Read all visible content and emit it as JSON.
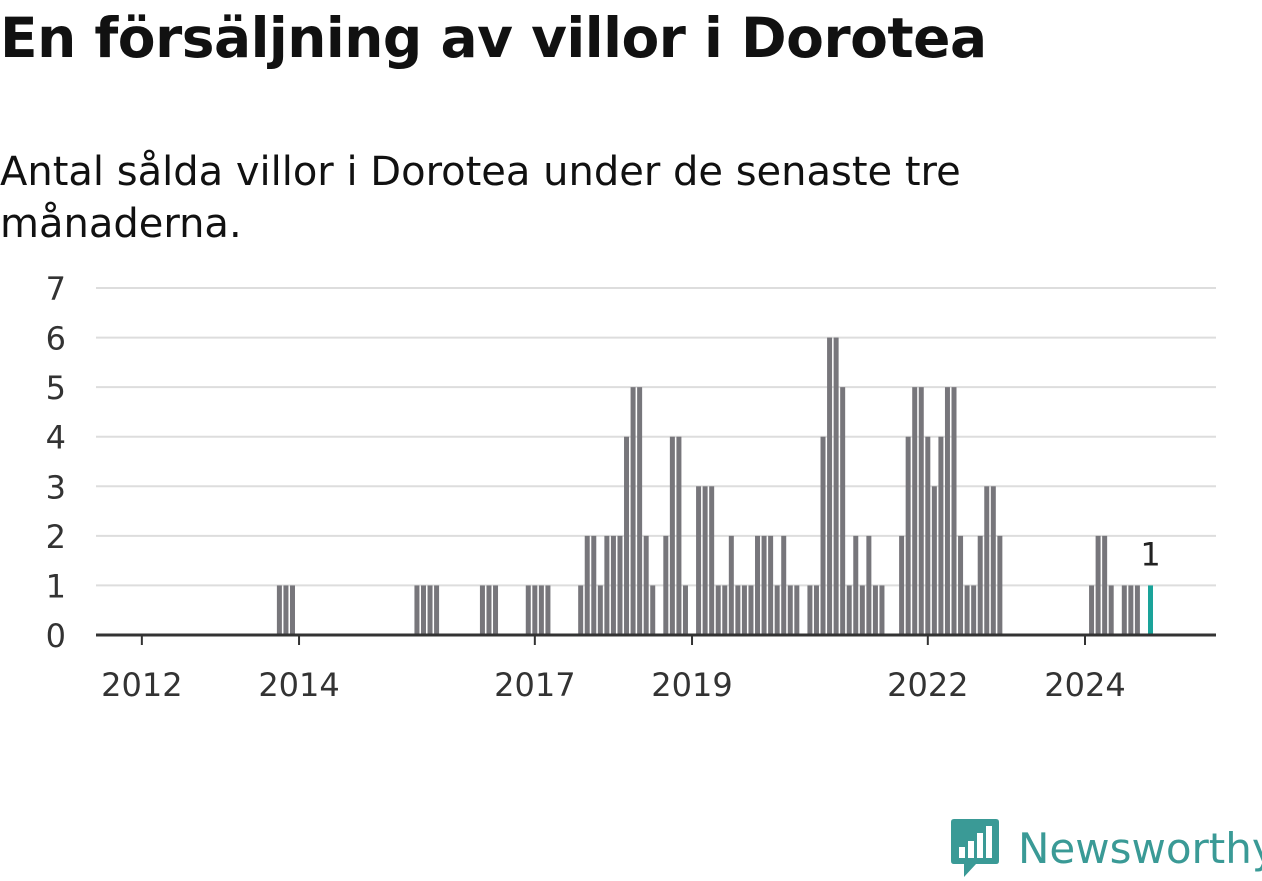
{
  "title": "En försäljning av villor i Dorotea",
  "subtitle": "Antal sålda villor i Dorotea under de senaste tre månaderna.",
  "brand": {
    "name": "Newsworthy",
    "color": "#3a9a96",
    "icon": "bar-chart-badge-icon"
  },
  "colors": {
    "bar": "#77767b",
    "highlight": "#1aa39a",
    "grid": "#dddddd",
    "axis": "#333333"
  },
  "chart_data": {
    "type": "bar",
    "title": "En försäljning av villor i Dorotea",
    "subtitle": "Antal sålda villor i Dorotea under de senaste tre månaderna.",
    "xlabel": "",
    "ylabel": "",
    "ylim": [
      0,
      7
    ],
    "yticks": [
      0,
      1,
      2,
      3,
      4,
      5,
      6,
      7
    ],
    "grid": true,
    "x_domain": [
      "2011-06",
      "2025-09"
    ],
    "x_ticks": [
      {
        "date": "2012-01",
        "label": "2012"
      },
      {
        "date": "2014-01",
        "label": "2014"
      },
      {
        "date": "2017-01",
        "label": "2017"
      },
      {
        "date": "2019-01",
        "label": "2019"
      },
      {
        "date": "2022-01",
        "label": "2022"
      },
      {
        "date": "2024-01",
        "label": "2024"
      }
    ],
    "series": [
      {
        "values": [
          {
            "x": "2013-10",
            "y": 1
          },
          {
            "x": "2013-11",
            "y": 1
          },
          {
            "x": "2013-12",
            "y": 1
          },
          {
            "x": "2015-07",
            "y": 1
          },
          {
            "x": "2015-08",
            "y": 1
          },
          {
            "x": "2015-09",
            "y": 1
          },
          {
            "x": "2015-10",
            "y": 1
          },
          {
            "x": "2016-05",
            "y": 1
          },
          {
            "x": "2016-06",
            "y": 1
          },
          {
            "x": "2016-07",
            "y": 1
          },
          {
            "x": "2016-12",
            "y": 1
          },
          {
            "x": "2017-01",
            "y": 1
          },
          {
            "x": "2017-02",
            "y": 1
          },
          {
            "x": "2017-03",
            "y": 1
          },
          {
            "x": "2017-08",
            "y": 1
          },
          {
            "x": "2017-09",
            "y": 2
          },
          {
            "x": "2017-10",
            "y": 2
          },
          {
            "x": "2017-11",
            "y": 1
          },
          {
            "x": "2017-12",
            "y": 2
          },
          {
            "x": "2018-01",
            "y": 2
          },
          {
            "x": "2018-02",
            "y": 2
          },
          {
            "x": "2018-03",
            "y": 4
          },
          {
            "x": "2018-04",
            "y": 5
          },
          {
            "x": "2018-05",
            "y": 5
          },
          {
            "x": "2018-06",
            "y": 2
          },
          {
            "x": "2018-07",
            "y": 1
          },
          {
            "x": "2018-09",
            "y": 2
          },
          {
            "x": "2018-10",
            "y": 4
          },
          {
            "x": "2018-11",
            "y": 4
          },
          {
            "x": "2018-12",
            "y": 1
          },
          {
            "x": "2019-02",
            "y": 3
          },
          {
            "x": "2019-03",
            "y": 3
          },
          {
            "x": "2019-04",
            "y": 3
          },
          {
            "x": "2019-05",
            "y": 1
          },
          {
            "x": "2019-06",
            "y": 1
          },
          {
            "x": "2019-07",
            "y": 2
          },
          {
            "x": "2019-08",
            "y": 1
          },
          {
            "x": "2019-09",
            "y": 1
          },
          {
            "x": "2019-10",
            "y": 1
          },
          {
            "x": "2019-11",
            "y": 2
          },
          {
            "x": "2019-12",
            "y": 2
          },
          {
            "x": "2020-01",
            "y": 2
          },
          {
            "x": "2020-02",
            "y": 1
          },
          {
            "x": "2020-03",
            "y": 2
          },
          {
            "x": "2020-04",
            "y": 1
          },
          {
            "x": "2020-05",
            "y": 1
          },
          {
            "x": "2020-07",
            "y": 1
          },
          {
            "x": "2020-08",
            "y": 1
          },
          {
            "x": "2020-09",
            "y": 4
          },
          {
            "x": "2020-10",
            "y": 6
          },
          {
            "x": "2020-11",
            "y": 6
          },
          {
            "x": "2020-12",
            "y": 5
          },
          {
            "x": "2021-01",
            "y": 1
          },
          {
            "x": "2021-02",
            "y": 2
          },
          {
            "x": "2021-03",
            "y": 1
          },
          {
            "x": "2021-04",
            "y": 2
          },
          {
            "x": "2021-05",
            "y": 1
          },
          {
            "x": "2021-06",
            "y": 1
          },
          {
            "x": "2021-09",
            "y": 2
          },
          {
            "x": "2021-10",
            "y": 4
          },
          {
            "x": "2021-11",
            "y": 5
          },
          {
            "x": "2021-12",
            "y": 5
          },
          {
            "x": "2022-01",
            "y": 4
          },
          {
            "x": "2022-02",
            "y": 3
          },
          {
            "x": "2022-03",
            "y": 4
          },
          {
            "x": "2022-04",
            "y": 5
          },
          {
            "x": "2022-05",
            "y": 5
          },
          {
            "x": "2022-06",
            "y": 2
          },
          {
            "x": "2022-07",
            "y": 1
          },
          {
            "x": "2022-08",
            "y": 1
          },
          {
            "x": "2022-09",
            "y": 2
          },
          {
            "x": "2022-10",
            "y": 3
          },
          {
            "x": "2022-11",
            "y": 3
          },
          {
            "x": "2022-12",
            "y": 2
          },
          {
            "x": "2024-02",
            "y": 1
          },
          {
            "x": "2024-03",
            "y": 2
          },
          {
            "x": "2024-04",
            "y": 2
          },
          {
            "x": "2024-05",
            "y": 1
          },
          {
            "x": "2024-07",
            "y": 1
          },
          {
            "x": "2024-08",
            "y": 1
          },
          {
            "x": "2024-09",
            "y": 1
          },
          {
            "x": "2024-11",
            "y": 1,
            "highlight": true,
            "label": "1"
          }
        ]
      }
    ]
  }
}
